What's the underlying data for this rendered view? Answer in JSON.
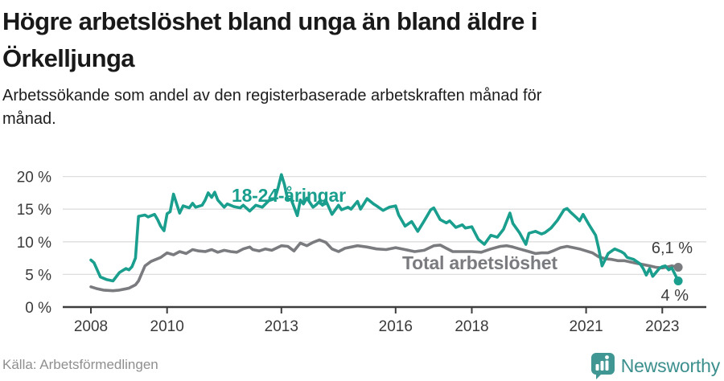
{
  "header": {
    "title_line1": "Högre arbetslöshet bland unga än bland äldre i",
    "title_line2": "Örkelljunga",
    "subtitle_line1": "Arbetssökande som andel av den registerbaserade arbetskraften månad för",
    "subtitle_line2": "månad."
  },
  "chart_data": {
    "type": "line",
    "title": "Högre arbetslöshet bland unga än bland äldre i Örkelljunga",
    "subtitle": "Arbetssökande som andel av den registerbaserade arbetskraften månad för månad.",
    "grid": "horizontal",
    "x_axis": {
      "unit": "year",
      "min": 2008,
      "max": 2023.42,
      "ticks": [
        2008,
        2010,
        2013,
        2016,
        2018,
        2021,
        2023
      ],
      "labels": [
        "2008",
        "2010",
        "2013",
        "2016",
        "2018",
        "2021",
        "2023"
      ]
    },
    "y_axis": {
      "unit": "percent",
      "min": 0,
      "max": 20,
      "ticks": [
        0,
        5,
        10,
        15,
        20
      ],
      "labels": [
        "0 %",
        "5 %",
        "10 %",
        "15 %",
        "20 %"
      ]
    },
    "series": [
      {
        "id": "total",
        "name": "Total arbetslöshet",
        "label": "Total arbetslöshet",
        "color": "#7a7b7e",
        "end_label": "6,1 %",
        "end_value": 6.1,
        "points": [
          [
            2008.0,
            3.1
          ],
          [
            2008.17,
            2.8
          ],
          [
            2008.33,
            2.6
          ],
          [
            2008.58,
            2.5
          ],
          [
            2008.75,
            2.6
          ],
          [
            2008.92,
            2.8
          ],
          [
            2009.0,
            2.9
          ],
          [
            2009.17,
            3.4
          ],
          [
            2009.25,
            4.0
          ],
          [
            2009.42,
            6.3
          ],
          [
            2009.58,
            7.0
          ],
          [
            2009.83,
            7.6
          ],
          [
            2010.0,
            8.3
          ],
          [
            2010.17,
            8.0
          ],
          [
            2010.33,
            8.5
          ],
          [
            2010.5,
            8.2
          ],
          [
            2010.67,
            8.8
          ],
          [
            2010.83,
            8.6
          ],
          [
            2011.0,
            8.5
          ],
          [
            2011.17,
            8.8
          ],
          [
            2011.33,
            8.4
          ],
          [
            2011.5,
            8.7
          ],
          [
            2011.67,
            8.5
          ],
          [
            2011.83,
            8.4
          ],
          [
            2012.0,
            8.9
          ],
          [
            2012.17,
            9.2
          ],
          [
            2012.25,
            8.8
          ],
          [
            2012.42,
            8.6
          ],
          [
            2012.58,
            8.9
          ],
          [
            2012.75,
            8.7
          ],
          [
            2013.0,
            9.4
          ],
          [
            2013.17,
            9.3
          ],
          [
            2013.33,
            8.6
          ],
          [
            2013.5,
            9.8
          ],
          [
            2013.67,
            9.4
          ],
          [
            2013.83,
            9.9
          ],
          [
            2014.0,
            10.3
          ],
          [
            2014.17,
            9.9
          ],
          [
            2014.33,
            8.9
          ],
          [
            2014.5,
            8.5
          ],
          [
            2014.67,
            9.0
          ],
          [
            2015.0,
            9.4
          ],
          [
            2015.25,
            9.2
          ],
          [
            2015.5,
            8.9
          ],
          [
            2015.75,
            8.8
          ],
          [
            2016.0,
            9.1
          ],
          [
            2016.25,
            8.8
          ],
          [
            2016.5,
            8.5
          ],
          [
            2016.75,
            8.7
          ],
          [
            2017.0,
            9.4
          ],
          [
            2017.17,
            9.5
          ],
          [
            2017.33,
            9.0
          ],
          [
            2017.5,
            8.5
          ],
          [
            2017.75,
            8.5
          ],
          [
            2018.0,
            8.5
          ],
          [
            2018.25,
            8.4
          ],
          [
            2018.5,
            8.9
          ],
          [
            2018.75,
            9.3
          ],
          [
            2018.92,
            9.4
          ],
          [
            2019.08,
            9.2
          ],
          [
            2019.25,
            8.9
          ],
          [
            2019.5,
            8.5
          ],
          [
            2019.67,
            8.2
          ],
          [
            2019.83,
            8.3
          ],
          [
            2020.0,
            8.3
          ],
          [
            2020.17,
            8.7
          ],
          [
            2020.33,
            9.1
          ],
          [
            2020.5,
            9.3
          ],
          [
            2020.67,
            9.1
          ],
          [
            2020.83,
            8.9
          ],
          [
            2021.0,
            8.6
          ],
          [
            2021.17,
            8.3
          ],
          [
            2021.33,
            7.7
          ],
          [
            2021.5,
            7.4
          ],
          [
            2021.67,
            7.3
          ],
          [
            2021.83,
            7.1
          ],
          [
            2022.0,
            7.1
          ],
          [
            2022.17,
            6.9
          ],
          [
            2022.33,
            6.7
          ],
          [
            2022.5,
            6.5
          ],
          [
            2022.67,
            6.3
          ],
          [
            2022.83,
            6.1
          ],
          [
            2023.0,
            6.0
          ],
          [
            2023.17,
            6.2
          ],
          [
            2023.25,
            6.3
          ],
          [
            2023.42,
            6.1
          ]
        ]
      },
      {
        "id": "young",
        "name": "18-24-åringar",
        "label": "18-24-åringar",
        "color": "#1a9e8e",
        "end_label": "4 %",
        "end_value": 4.0,
        "points": [
          [
            2008.0,
            7.2
          ],
          [
            2008.08,
            6.8
          ],
          [
            2008.25,
            4.6
          ],
          [
            2008.42,
            4.2
          ],
          [
            2008.58,
            4.0
          ],
          [
            2008.75,
            5.3
          ],
          [
            2008.92,
            5.9
          ],
          [
            2009.0,
            5.7
          ],
          [
            2009.08,
            6.2
          ],
          [
            2009.17,
            7.5
          ],
          [
            2009.25,
            13.9
          ],
          [
            2009.42,
            14.1
          ],
          [
            2009.5,
            13.8
          ],
          [
            2009.67,
            14.2
          ],
          [
            2009.75,
            13.4
          ],
          [
            2009.83,
            12.4
          ],
          [
            2009.92,
            11.7
          ],
          [
            2010.0,
            14.3
          ],
          [
            2010.08,
            14.6
          ],
          [
            2010.17,
            17.3
          ],
          [
            2010.33,
            14.4
          ],
          [
            2010.42,
            15.5
          ],
          [
            2010.58,
            15.2
          ],
          [
            2010.67,
            15.9
          ],
          [
            2010.75,
            15.3
          ],
          [
            2010.92,
            15.6
          ],
          [
            2011.0,
            16.4
          ],
          [
            2011.08,
            17.5
          ],
          [
            2011.17,
            16.8
          ],
          [
            2011.25,
            17.6
          ],
          [
            2011.33,
            16.4
          ],
          [
            2011.5,
            15.3
          ],
          [
            2011.58,
            15.8
          ],
          [
            2011.75,
            15.4
          ],
          [
            2011.92,
            15.2
          ],
          [
            2012.0,
            15.6
          ],
          [
            2012.17,
            14.7
          ],
          [
            2012.33,
            15.6
          ],
          [
            2012.5,
            15.3
          ],
          [
            2012.67,
            16.3
          ],
          [
            2012.83,
            16.6
          ],
          [
            2012.92,
            18.4
          ],
          [
            2013.0,
            20.3
          ],
          [
            2013.08,
            18.8
          ],
          [
            2013.17,
            16.4
          ],
          [
            2013.25,
            16.6
          ],
          [
            2013.42,
            14.0
          ],
          [
            2013.5,
            16.4
          ],
          [
            2013.58,
            15.8
          ],
          [
            2013.67,
            16.7
          ],
          [
            2013.83,
            15.3
          ],
          [
            2013.92,
            15.7
          ],
          [
            2014.0,
            16.2
          ],
          [
            2014.08,
            15.6
          ],
          [
            2014.17,
            16.3
          ],
          [
            2014.33,
            14.2
          ],
          [
            2014.5,
            15.6
          ],
          [
            2014.58,
            14.9
          ],
          [
            2014.75,
            15.3
          ],
          [
            2014.83,
            15.0
          ],
          [
            2015.0,
            16.2
          ],
          [
            2015.08,
            15.0
          ],
          [
            2015.25,
            16.6
          ],
          [
            2015.42,
            15.8
          ],
          [
            2015.5,
            15.5
          ],
          [
            2015.67,
            14.8
          ],
          [
            2015.83,
            15.3
          ],
          [
            2016.0,
            15.5
          ],
          [
            2016.08,
            14.1
          ],
          [
            2016.25,
            12.4
          ],
          [
            2016.42,
            13.1
          ],
          [
            2016.58,
            11.6
          ],
          [
            2016.75,
            13.2
          ],
          [
            2016.92,
            14.9
          ],
          [
            2017.0,
            15.2
          ],
          [
            2017.17,
            13.4
          ],
          [
            2017.33,
            12.9
          ],
          [
            2017.42,
            13.2
          ],
          [
            2017.58,
            12.2
          ],
          [
            2017.75,
            12.6
          ],
          [
            2017.83,
            12.1
          ],
          [
            2018.0,
            12.3
          ],
          [
            2018.17,
            10.4
          ],
          [
            2018.33,
            9.6
          ],
          [
            2018.5,
            11.0
          ],
          [
            2018.67,
            10.7
          ],
          [
            2018.83,
            11.9
          ],
          [
            2019.0,
            14.4
          ],
          [
            2019.08,
            12.8
          ],
          [
            2019.25,
            11.4
          ],
          [
            2019.42,
            9.6
          ],
          [
            2019.5,
            11.3
          ],
          [
            2019.67,
            11.6
          ],
          [
            2019.83,
            11.2
          ],
          [
            2019.92,
            11.4
          ],
          [
            2020.08,
            12.1
          ],
          [
            2020.25,
            13.3
          ],
          [
            2020.42,
            14.9
          ],
          [
            2020.5,
            15.1
          ],
          [
            2020.58,
            14.6
          ],
          [
            2020.75,
            13.7
          ],
          [
            2020.83,
            13.2
          ],
          [
            2020.92,
            14.2
          ],
          [
            2021.08,
            12.6
          ],
          [
            2021.25,
            11.0
          ],
          [
            2021.33,
            9.0
          ],
          [
            2021.42,
            6.3
          ],
          [
            2021.58,
            8.2
          ],
          [
            2021.75,
            8.9
          ],
          [
            2021.92,
            8.5
          ],
          [
            2022.0,
            8.2
          ],
          [
            2022.08,
            7.6
          ],
          [
            2022.25,
            7.3
          ],
          [
            2022.42,
            6.6
          ],
          [
            2022.5,
            5.9
          ],
          [
            2022.58,
            4.9
          ],
          [
            2022.67,
            5.9
          ],
          [
            2022.75,
            4.7
          ],
          [
            2022.92,
            5.9
          ],
          [
            2023.0,
            6.2
          ],
          [
            2023.08,
            6.3
          ],
          [
            2023.17,
            5.7
          ],
          [
            2023.25,
            6.0
          ],
          [
            2023.42,
            4.0
          ]
        ]
      }
    ]
  },
  "footer": {
    "source": "Källa: Arbetsförmedlingen",
    "brand": "Newsworthy"
  }
}
